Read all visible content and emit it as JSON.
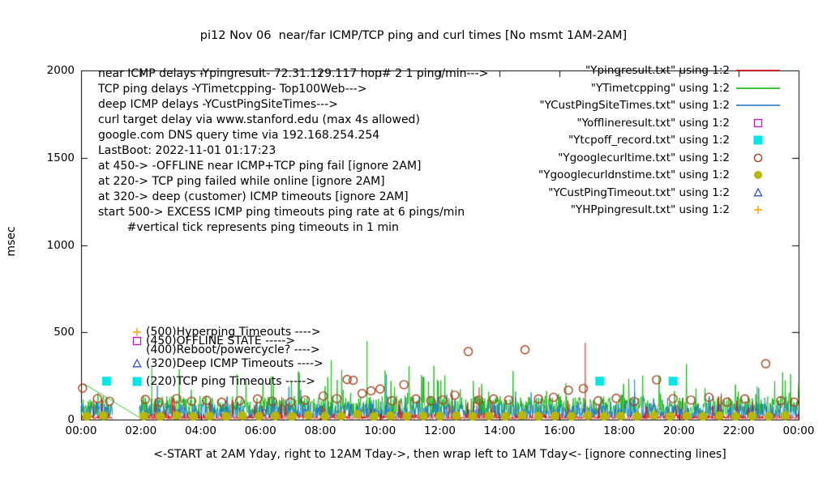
{
  "chart_data": {
    "type": "line",
    "title": "pi12 Nov 06  near/far ICMP/TCP ping and curl times [No msmt 1AM-2AM]",
    "ylabel": "msec",
    "xlabel": "<-START at 2AM Yday, right to 12AM Tday->, then wrap left to 1AM Tday<- [ignore connecting lines]",
    "ylim": [
      0,
      2000
    ],
    "yticks": [
      0,
      500,
      1000,
      1500,
      2000
    ],
    "xlim_hours": [
      0,
      24
    ],
    "xtick_labels": [
      "00:00",
      "02:00",
      "04:00",
      "06:00",
      "08:00",
      "10:00",
      "12:00",
      "14:00",
      "16:00",
      "18:00",
      "20:00",
      "22:00",
      "00:00"
    ],
    "grid": false,
    "legend_position": "top-right",
    "annotations": [
      "near ICMP delays -Ypingresult- 72.31.129.117 hop# 2 1 ping/min--->",
      "TCP ping delays -YTimetcpping- Top100Web--->",
      "deep ICMP delays -YCustPingSiteTimes--->",
      "curl target delay via www.stanford.edu (max 4s allowed)",
      "google.com DNS query time via 192.168.254.254",
      "LastBoot: 2022-11-01 01:17:23",
      "at 450-> -OFFLINE near ICMP+TCP ping fail [ignore 2AM]",
      "at 220-> TCP ping failed while online [ignore 2AM]",
      "at 320-> deep (customer) ICMP timeouts [ignore 2AM]",
      "start 500-> EXCESS ICMP ping timeouts ping rate at 6 pings/min",
      "        #vertical tick represents ping timeouts in 1 min"
    ],
    "level_annotations": [
      {
        "y": 500,
        "marker": "plus",
        "color": "#ffa500",
        "text": "(500)Hyperping Timeouts ---->"
      },
      {
        "y": 450,
        "marker": "square-open",
        "color": "#c020c0",
        "text": "(450)OFFLINE STATE ----->"
      },
      {
        "y": 400,
        "marker": null,
        "color": "#000000",
        "text": "(400)Reboot/powercycle? ---->"
      },
      {
        "y": 320,
        "marker": "triangle-open",
        "color": "#3050c8",
        "text": "(320)Deep ICMP Timeouts ---->"
      },
      {
        "y": 220,
        "marker": "square-filled",
        "color": "#00e5e5",
        "text": "(220)TCP ping Timeouts ----->"
      }
    ],
    "legend": [
      {
        "label": "\"Ypingresult.txt\" using 1:2",
        "sample": "line",
        "color": "#e00000"
      },
      {
        "label": "\"YTimetcpping\" using 1:2",
        "sample": "line",
        "color": "#00b000"
      },
      {
        "label": "\"YCustPingSiteTimes.txt\" using 1:2",
        "sample": "line",
        "color": "#1874cd"
      },
      {
        "label": "\"Yofflineresult.txt\" using 1:2",
        "sample": "square-open",
        "color": "#c020c0"
      },
      {
        "label": "\"Ytcpoff_record.txt\" using 1:2",
        "sample": "square-filled",
        "color": "#00e5e5"
      },
      {
        "label": "\"Ygooglecurltime.txt\" using 1:2",
        "sample": "circle-open",
        "color": "#a0421e"
      },
      {
        "label": "\"Ygooglecurldnstime.txt\" using 1:2",
        "sample": "circle-filled",
        "color": "#b8b800"
      },
      {
        "label": "\"YCustPingTimeout.txt\" using 1:2",
        "sample": "triangle-open",
        "color": "#3050c8"
      },
      {
        "label": "\"YHPpingresult.txt\" using 1:2",
        "sample": "plus",
        "color": "#ffa500"
      }
    ],
    "noise_series": [
      {
        "name": "YTimetcpping TCP ping delays",
        "color": "#00b000",
        "seed": 22,
        "base": 25,
        "var": 110,
        "pow": 1.6,
        "spike_prob": 0.05,
        "spike_amp": 200,
        "gap_hours": [
          1.05,
          1.95
        ],
        "spikes": [
          [
            9.55,
            450
          ],
          [
            8.35,
            340
          ],
          [
            2.35,
            300
          ],
          [
            5.2,
            260
          ],
          [
            11.9,
            230
          ],
          [
            16.2,
            210
          ]
        ],
        "connectors": [
          [
            0.1,
            205,
            1.95,
            12
          ]
        ]
      },
      {
        "name": "YCustPingSiteTimes deep ICMP delays",
        "color": "#1874cd",
        "seed": 33,
        "base": 10,
        "var": 85,
        "pow": 1.8,
        "spike_prob": 0.04,
        "spike_amp": 110,
        "gap_hours": [
          1.05,
          1.95
        ],
        "spikes": [
          [
            10.2,
            260
          ],
          [
            18.5,
            230
          ],
          [
            22.6,
            190
          ]
        ],
        "connectors": []
      },
      {
        "name": "Ypingresult near ICMP delays",
        "color": "#e00000",
        "seed": 11,
        "base": 4,
        "var": 30,
        "pow": 3.0,
        "spike_prob": 0.03,
        "spike_amp": 120,
        "gap_hours": [
          1.05,
          1.95
        ],
        "spikes": [
          [
            16.85,
            440
          ],
          [
            13.3,
            185
          ],
          [
            21.4,
            150
          ],
          [
            0.4,
            120
          ],
          [
            3.1,
            120
          ],
          [
            6.7,
            130
          ],
          [
            12.4,
            140
          ],
          [
            20.1,
            125
          ]
        ],
        "connectors": []
      }
    ],
    "scatter_series": [
      {
        "name": "Ygooglecurltime curl target delay",
        "marker": "circle-open",
        "color": "#a0421e",
        "points": [
          [
            0.05,
            180
          ],
          [
            0.55,
            120
          ],
          [
            0.95,
            105
          ],
          [
            2.15,
            115
          ],
          [
            2.6,
            100
          ],
          [
            3.2,
            120
          ],
          [
            3.7,
            105
          ],
          [
            4.2,
            110
          ],
          [
            4.7,
            100
          ],
          [
            5.3,
            108
          ],
          [
            5.9,
            118
          ],
          [
            6.4,
            105
          ],
          [
            7.0,
            100
          ],
          [
            7.5,
            112
          ],
          [
            8.1,
            135
          ],
          [
            8.55,
            120
          ],
          [
            8.9,
            230
          ],
          [
            9.1,
            225
          ],
          [
            9.4,
            150
          ],
          [
            9.7,
            165
          ],
          [
            10.0,
            175
          ],
          [
            10.4,
            108
          ],
          [
            10.8,
            200
          ],
          [
            11.2,
            118
          ],
          [
            11.7,
            108
          ],
          [
            12.1,
            112
          ],
          [
            12.5,
            140
          ],
          [
            12.95,
            390
          ],
          [
            13.3,
            112
          ],
          [
            13.8,
            118
          ],
          [
            14.3,
            112
          ],
          [
            14.85,
            400
          ],
          [
            15.3,
            118
          ],
          [
            15.8,
            128
          ],
          [
            16.3,
            168
          ],
          [
            16.8,
            178
          ],
          [
            17.3,
            108
          ],
          [
            17.9,
            122
          ],
          [
            18.5,
            104
          ],
          [
            19.25,
            228
          ],
          [
            19.8,
            120
          ],
          [
            20.4,
            112
          ],
          [
            21.0,
            128
          ],
          [
            21.6,
            100
          ],
          [
            22.2,
            118
          ],
          [
            22.9,
            320
          ],
          [
            23.4,
            108
          ],
          [
            23.85,
            100
          ]
        ]
      },
      {
        "name": "Ygooglecurldnstime google.com DNS query time",
        "marker": "circle-filled",
        "color": "#b8b800",
        "points": [
          [
            0.2,
            18
          ],
          [
            0.75,
            22
          ],
          [
            2.1,
            20
          ],
          [
            2.65,
            18
          ],
          [
            3.2,
            24
          ],
          [
            3.75,
            18
          ],
          [
            4.3,
            20
          ],
          [
            4.85,
            18
          ],
          [
            5.4,
            22
          ],
          [
            5.95,
            18
          ],
          [
            6.5,
            20
          ],
          [
            7.05,
            18
          ],
          [
            7.6,
            24
          ],
          [
            8.15,
            18
          ],
          [
            8.7,
            20
          ],
          [
            9.25,
            30
          ],
          [
            9.8,
            18
          ],
          [
            10.35,
            22
          ],
          [
            10.9,
            18
          ],
          [
            11.45,
            20
          ],
          [
            12.0,
            18
          ],
          [
            12.55,
            22
          ],
          [
            13.1,
            18
          ],
          [
            13.65,
            20
          ],
          [
            14.2,
            18
          ],
          [
            14.75,
            24
          ],
          [
            15.3,
            18
          ],
          [
            15.85,
            20
          ],
          [
            16.4,
            18
          ],
          [
            16.95,
            22
          ],
          [
            17.5,
            18
          ],
          [
            18.05,
            20
          ],
          [
            18.6,
            18
          ],
          [
            19.15,
            24
          ],
          [
            19.7,
            18
          ],
          [
            20.25,
            20
          ],
          [
            20.8,
            18
          ],
          [
            21.35,
            22
          ],
          [
            21.9,
            18
          ],
          [
            22.45,
            20
          ],
          [
            23.0,
            18
          ],
          [
            23.55,
            22
          ]
        ]
      },
      {
        "name": "Ytcpoff_record TCP ping failed while online",
        "marker": "square-filled",
        "color": "#00e5e5",
        "points": [
          [
            0.85,
            220
          ],
          [
            17.35,
            220
          ],
          [
            19.8,
            220
          ]
        ]
      }
    ]
  }
}
